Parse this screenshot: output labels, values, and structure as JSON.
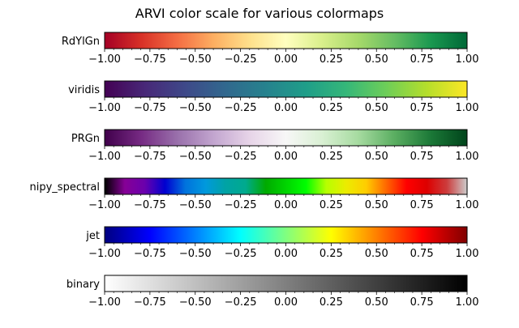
{
  "chart_data": {
    "type": "heatmap",
    "title": "ARVI color scale for various colormaps",
    "xlim": [
      -1.0,
      1.0
    ],
    "major_ticks": [
      -1.0,
      -0.75,
      -0.5,
      -0.25,
      0.0,
      0.25,
      0.5,
      0.75,
      1.0
    ],
    "tick_labels": [
      "−1.00",
      "−0.75",
      "−0.50",
      "−0.25",
      "0.00",
      "0.25",
      "0.50",
      "0.75",
      "1.00"
    ],
    "minor_tick_step": 0.05,
    "colormaps": [
      {
        "name": "RdYlGn",
        "stops": [
          "#a50026",
          "#d73027",
          "#f46d43",
          "#fdae61",
          "#fee08b",
          "#ffffbf",
          "#d9ef8b",
          "#a6d96a",
          "#66bd63",
          "#1a9850",
          "#006837"
        ]
      },
      {
        "name": "viridis",
        "stops": [
          "#440154",
          "#482878",
          "#3e4989",
          "#31688e",
          "#26828e",
          "#1f9e89",
          "#35b779",
          "#6ece58",
          "#b5de2b",
          "#fde725"
        ]
      },
      {
        "name": "PRGn",
        "stops": [
          "#40004b",
          "#762a83",
          "#9970ab",
          "#c2a5cf",
          "#e7d4e8",
          "#f7f7f7",
          "#d9f0d3",
          "#a6dba0",
          "#5aae61",
          "#1b7837",
          "#00441b"
        ]
      },
      {
        "name": "nipy_spectral",
        "stops": [
          "#000000",
          "#860096",
          "#6a00ad",
          "#0000d0",
          "#0072dd",
          "#0099dd",
          "#00a3a5",
          "#00aa8e",
          "#00aa00",
          "#00d400",
          "#00fe00",
          "#b6ff00",
          "#ecec00",
          "#ffcc00",
          "#ff6600",
          "#ff0000",
          "#dd0000",
          "#cc3d3d",
          "#cccccc"
        ]
      },
      {
        "name": "jet",
        "stops": [
          "#000080",
          "#0000ff",
          "#0080ff",
          "#00ffff",
          "#80ff80",
          "#ffff00",
          "#ff8000",
          "#ff0000",
          "#800000"
        ]
      },
      {
        "name": "binary",
        "stops": [
          "#ffffff",
          "#000000"
        ]
      }
    ]
  }
}
